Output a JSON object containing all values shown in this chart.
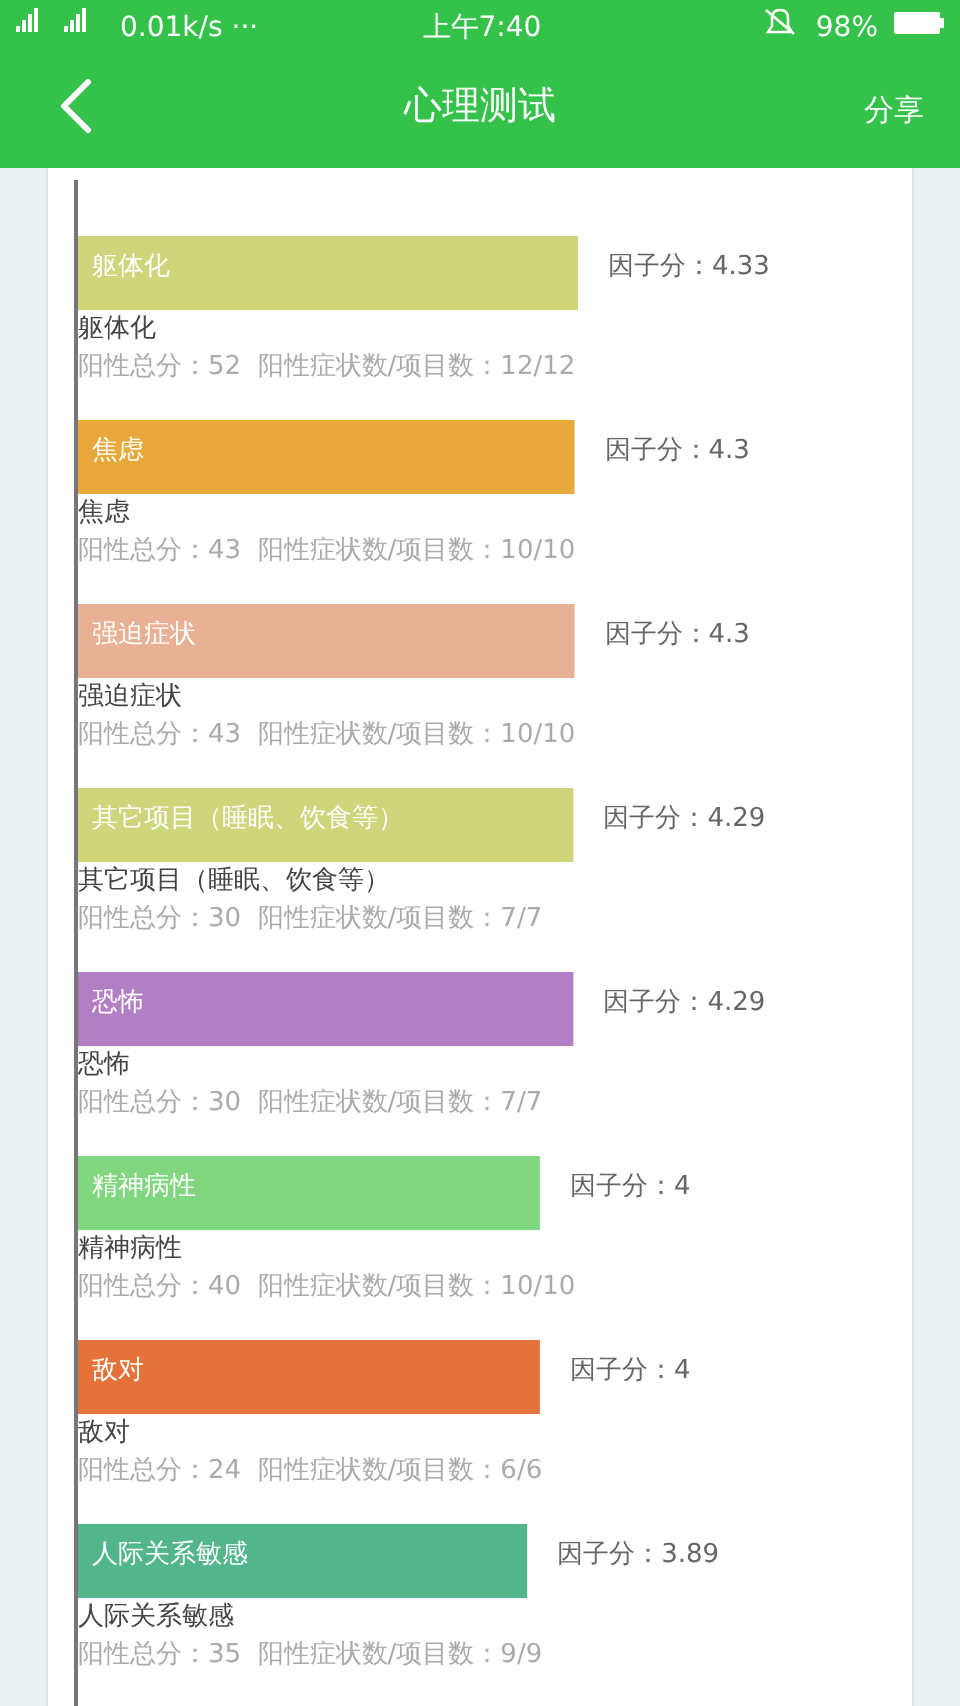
{
  "chart_data": {
    "type": "bar",
    "orientation": "horizontal",
    "title": "心理测试",
    "categories": [
      "躯体化",
      "焦虑",
      "强迫症状",
      "其它项目（睡眠、饮食等）",
      "恐怖",
      "精神病性",
      "敌对",
      "人际关系敏感"
    ],
    "values": [
      4.33,
      4.3,
      4.3,
      4.29,
      4.29,
      4,
      4,
      3.89
    ],
    "colors": [
      "#cfd57a",
      "#e8a93a",
      "#e8b094",
      "#cfd57a",
      "#b37fc4",
      "#80d77f",
      "#e4733b",
      "#52b58c"
    ],
    "value_labels": [
      "因子分：4.33",
      "因子分：4.3",
      "因子分：4.3",
      "因子分：4.29",
      "因子分：4.29",
      "因子分：4",
      "因子分：4",
      "因子分：3.89"
    ],
    "annotations": [
      "0.01k/s ···",
      "上午7:40",
      "98%",
      "分享",
      "阳性总分：52  阳性症状数/项目数：12/12",
      "阳性总分：43  阳性症状数/项目数：10/10",
      "阳性总分：43  阳性症状数/项目数：10/10",
      "阳性总分：30  阳性症状数/项目数：7/7",
      "阳性总分：30  阳性症状数/项目数：7/7",
      "阳性总分：40  阳性症状数/项目数：10/10",
      "阳性总分：24  阳性症状数/项目数：6/6",
      "阳性总分：35  阳性症状数/项目数：9/9"
    ]
  }
}
